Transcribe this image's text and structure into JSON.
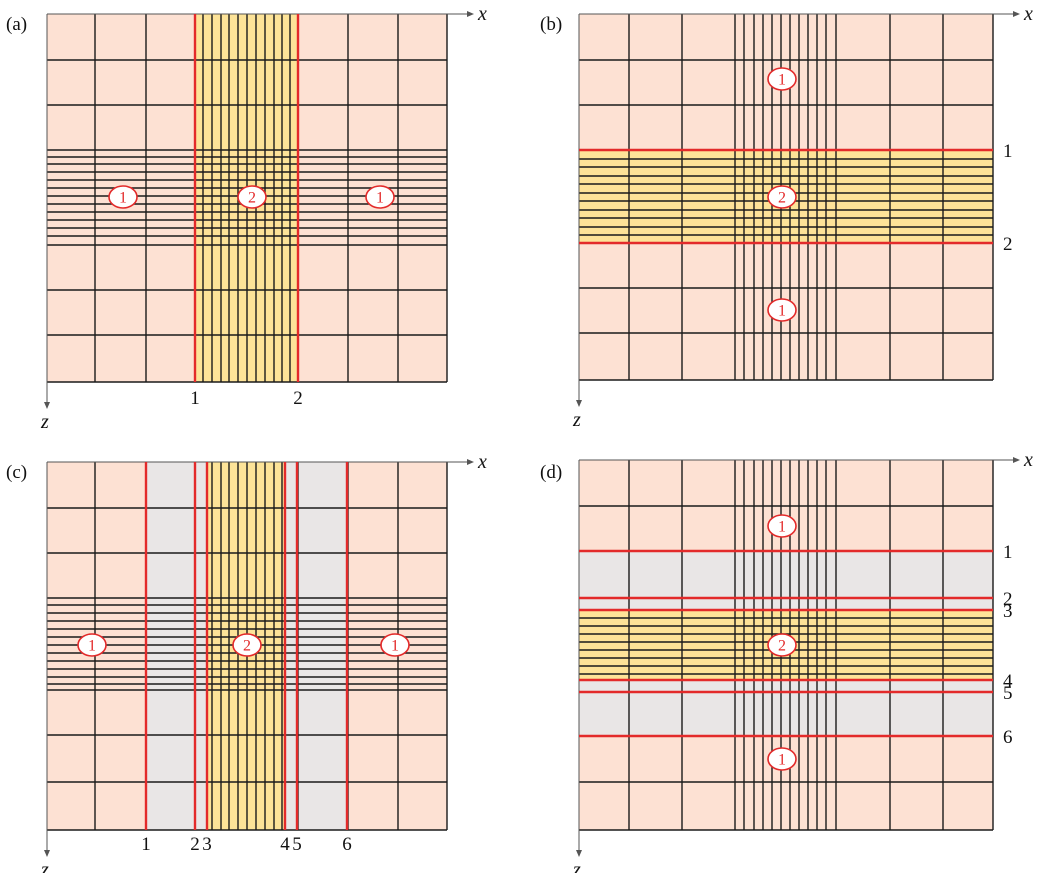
{
  "panels": [
    {
      "id": "a",
      "label": "(a)",
      "axes": {
        "x": "x",
        "z": "z"
      },
      "boundary_orientation": "vertical",
      "regions": [
        {
          "kind": "base",
          "fill": "#fde1d3"
        },
        {
          "kind": "core",
          "fill": "#fde398",
          "from_boundary": "1",
          "to_boundary": "2"
        }
      ],
      "boundary_numbers": [
        "1",
        "2"
      ],
      "region_markers": [
        "1",
        "2",
        "1"
      ]
    },
    {
      "id": "b",
      "label": "(b)",
      "axes": {
        "x": "x",
        "z": "z"
      },
      "boundary_orientation": "horizontal",
      "regions": [
        {
          "kind": "base",
          "fill": "#fde1d3"
        },
        {
          "kind": "core",
          "fill": "#fde398",
          "from_boundary": "1",
          "to_boundary": "2"
        }
      ],
      "boundary_numbers": [
        "1",
        "2"
      ],
      "region_markers": [
        "1",
        "2",
        "1"
      ]
    },
    {
      "id": "c",
      "label": "(c)",
      "axes": {
        "x": "x",
        "z": "z"
      },
      "boundary_orientation": "vertical",
      "regions": [
        {
          "kind": "base",
          "fill": "#fde1d3"
        },
        {
          "kind": "transition",
          "fill": "#e9e6e6",
          "from_boundary": "1",
          "to_boundary": "3"
        },
        {
          "kind": "core",
          "fill": "#fde398",
          "from_boundary": "3",
          "to_boundary": "4"
        },
        {
          "kind": "transition",
          "fill": "#e9e6e6",
          "from_boundary": "4",
          "to_boundary": "6"
        }
      ],
      "boundary_numbers": [
        "1",
        "2",
        "3",
        "4",
        "5",
        "6"
      ],
      "region_markers": [
        "1",
        "2",
        "1"
      ]
    },
    {
      "id": "d",
      "label": "(d)",
      "axes": {
        "x": "x",
        "z": "z"
      },
      "boundary_orientation": "horizontal",
      "regions": [
        {
          "kind": "base",
          "fill": "#fde1d3"
        },
        {
          "kind": "transition",
          "fill": "#e9e6e6",
          "from_boundary": "1",
          "to_boundary": "3"
        },
        {
          "kind": "core",
          "fill": "#fde398",
          "from_boundary": "3",
          "to_boundary": "4"
        },
        {
          "kind": "transition",
          "fill": "#e9e6e6",
          "from_boundary": "4",
          "to_boundary": "6"
        }
      ],
      "boundary_numbers": [
        "1",
        "2",
        "3",
        "4",
        "5",
        "6"
      ],
      "region_markers": [
        "1",
        "2",
        "1"
      ]
    }
  ],
  "colors": {
    "grid_line": "#1a1a1a",
    "boundary_line": "#e32a2a",
    "marker_text": "#e32a2a",
    "marker_fill": "#ffffff"
  }
}
